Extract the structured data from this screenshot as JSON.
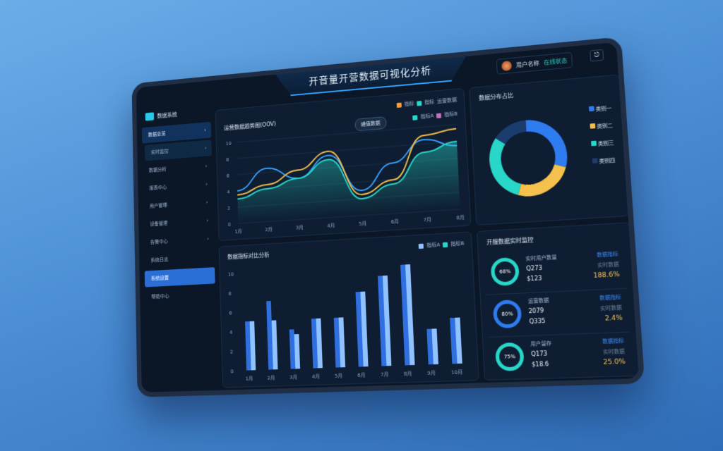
{
  "header": {
    "title": "开音量开营数据可视化分析",
    "user_name": "用户名称",
    "user_status": "在线状态",
    "exit_icon": "exit-icon"
  },
  "logo": {
    "text": "数据系统"
  },
  "sidebar": {
    "items": [
      {
        "label": "数据总览",
        "arrow": "›",
        "style": "top"
      },
      {
        "label": "实时监控",
        "arrow": "›",
        "style": "sub"
      },
      {
        "label": "数据分析",
        "arrow": "›"
      },
      {
        "label": "报表中心",
        "arrow": "›"
      },
      {
        "label": "用户管理",
        "arrow": "›"
      },
      {
        "label": "设备管理",
        "arrow": "›"
      },
      {
        "label": "告警中心",
        "arrow": "›"
      },
      {
        "label": "系统日志",
        "arrow": ""
      },
      {
        "label": "系统设置",
        "arrow": "",
        "style": "active"
      },
      {
        "label": "帮助中心",
        "arrow": ""
      }
    ]
  },
  "line_panel": {
    "title": "运营数据趋势图(OOV)",
    "legend_top": [
      "指标",
      "指标",
      "运营数据"
    ],
    "legend_2": [
      "指标A",
      "指标B"
    ],
    "tooltip": "峰值数据"
  },
  "donut_panel": {
    "title": "数据分布占比",
    "legend": [
      "类别一",
      "类别二",
      "类别三",
      "类别四"
    ]
  },
  "bar_panel": {
    "title": "数据指标对比分析",
    "legend": [
      "指标A",
      "指标B"
    ]
  },
  "stats_panel": {
    "title": "开服数据实时监控",
    "items": [
      {
        "ring": "68%",
        "name": "实时用户数量",
        "v1": "Q273",
        "v2": "$123",
        "r1": "数据指标",
        "r2": "实时数据",
        "r3": "188.6%",
        "color": "#28d7c8"
      },
      {
        "ring": "80%",
        "name": "运营数据",
        "v1": "2079",
        "v2": "Q335",
        "r1": "数据指标",
        "r2": "实时数据",
        "r3": "2.4%",
        "color": "#2f7bf0"
      },
      {
        "ring": "75%",
        "name": "用户留存",
        "v1": "Q173",
        "v2": "$18.6",
        "r1": "数据指标",
        "r2": "实时数据",
        "r3": "25.0%",
        "color": "#28d7c8"
      }
    ]
  },
  "colors": {
    "accent": "#2f7bf0",
    "teal": "#28d7c8",
    "yellow": "#f5c04c",
    "bg": "#0b1626"
  },
  "chart_data": [
    {
      "type": "line",
      "x": [
        "1月",
        "2月",
        "3月",
        "4月",
        "5月",
        "6月",
        "7月",
        "8月"
      ],
      "ylim": [
        0,
        10
      ],
      "yticks": [
        "10",
        "8",
        "6",
        "4",
        "2",
        "0"
      ],
      "series": [
        {
          "values": [
            4,
            6.5,
            5,
            7.5,
            3,
            6,
            8.5,
            7.5
          ],
          "color": "#3aa0ff"
        },
        {
          "values": [
            3.5,
            4.5,
            6,
            8,
            2.5,
            4,
            9,
            9.5
          ],
          "color": "#f5c04c"
        },
        {
          "values": [
            3,
            4,
            5,
            7,
            2,
            3.5,
            7,
            8
          ],
          "color": "#28d7c8",
          "area": true
        }
      ]
    },
    {
      "type": "pie",
      "values": [
        30,
        25,
        30,
        15
      ],
      "colors": [
        "#2f7bf0",
        "#f5c04c",
        "#28d7c8",
        "#1b3d6e"
      ]
    },
    {
      "type": "bar",
      "categories": [
        "1月",
        "2月",
        "3月",
        "4月",
        "5月",
        "6月",
        "7月",
        "8月",
        "9月",
        "10月"
      ],
      "ylim": [
        0,
        10
      ],
      "yticks": [
        "10",
        "8",
        "6",
        "4",
        "2",
        "0"
      ],
      "series": [
        {
          "name": "指标A",
          "values": [
            5,
            7,
            4,
            5,
            5,
            7.5,
            9,
            10,
            3.5,
            4.5
          ],
          "color": "#2f6fe0"
        },
        {
          "name": "指标B",
          "values": [
            5,
            5,
            3.5,
            5,
            5,
            7.5,
            9,
            10,
            3.5,
            4.5
          ],
          "color": "#8fc2ff"
        }
      ]
    }
  ]
}
